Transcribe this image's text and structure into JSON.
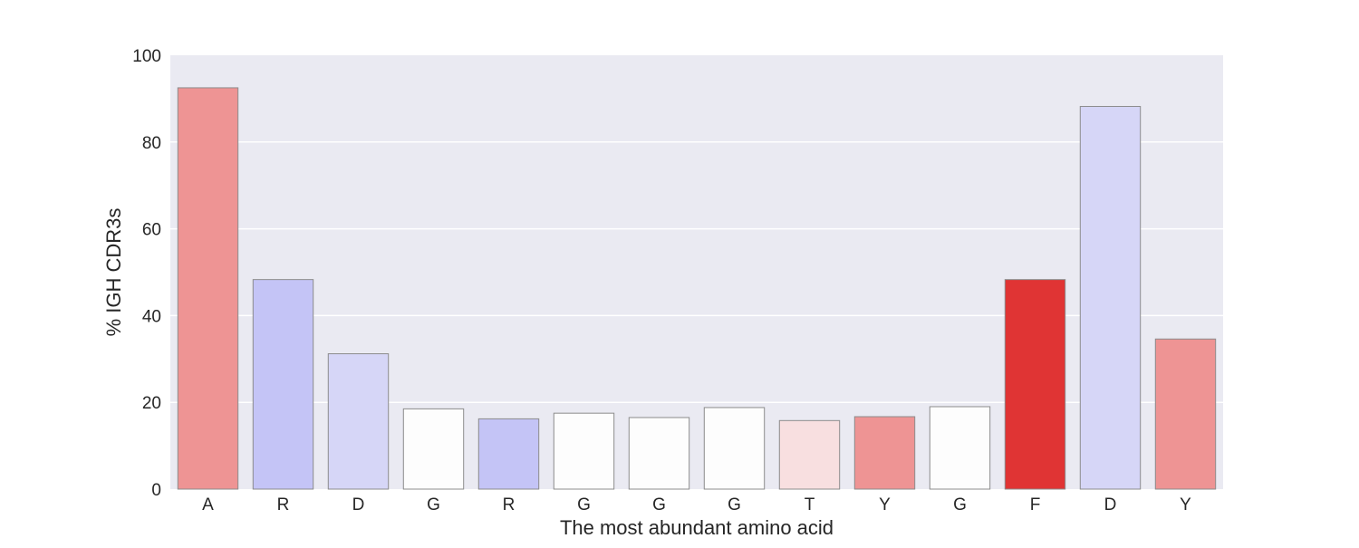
{
  "chart_data": {
    "type": "bar",
    "title": "",
    "xlabel": "The most abundant amino acid",
    "ylabel": "% IGH CDR3s",
    "ylim": [
      0,
      100
    ],
    "yticks": [
      0,
      20,
      40,
      60,
      80,
      100
    ],
    "grid": true,
    "legend": "none",
    "categories": [
      "A",
      "R",
      "D",
      "G",
      "R",
      "G",
      "G",
      "G",
      "T",
      "Y",
      "G",
      "F",
      "D",
      "Y"
    ],
    "values": [
      92.5,
      48.3,
      31.2,
      18.5,
      16.2,
      17.5,
      16.5,
      18.8,
      15.8,
      16.7,
      19.0,
      48.3,
      88.2,
      34.6
    ],
    "bar_colors": [
      "#ee9494",
      "#c4c4f6",
      "#d6d6f7",
      "#fdfdfd",
      "#c4c4f6",
      "#fdfdfd",
      "#fdfdfd",
      "#fdfdfd",
      "#f8dfe0",
      "#ee9494",
      "#fdfdfd",
      "#e03434",
      "#d6d6f7",
      "#ee9494"
    ],
    "background_color": "#eaeaf2",
    "grid_color": "#ffffff",
    "bar_edge_color": "#8c8c8c"
  }
}
